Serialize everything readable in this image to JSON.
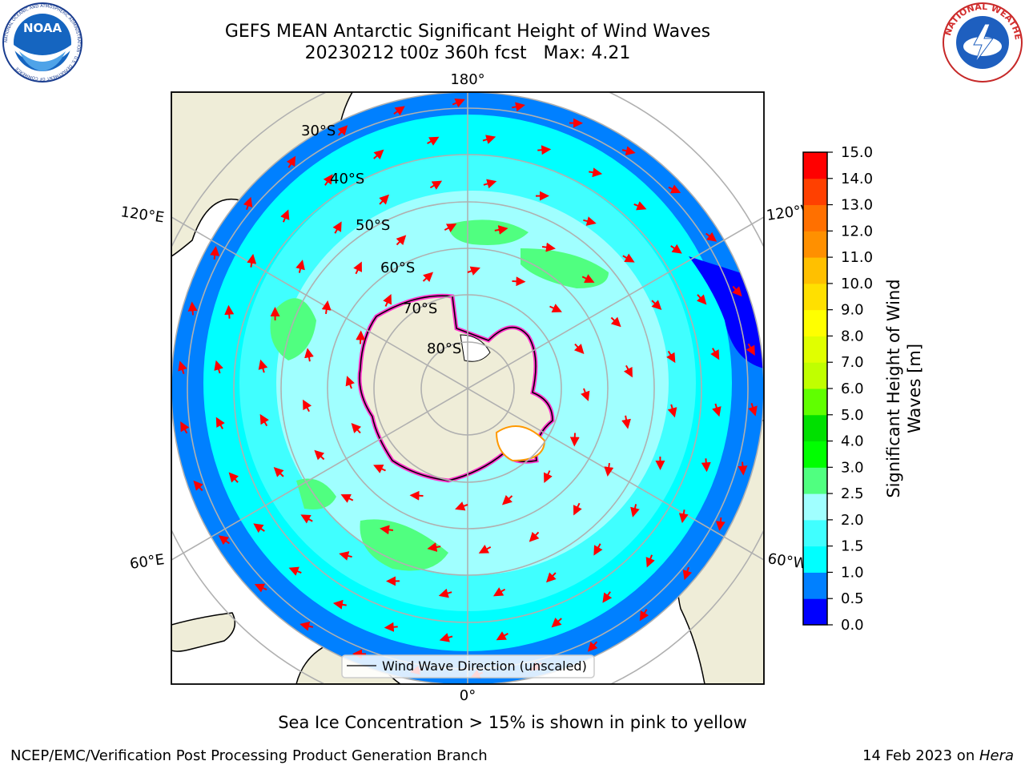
{
  "title": {
    "line1": "GEFS MEAN Antarctic Significant Height of Wind Waves",
    "line2": "20230212 t00z 360h fcst   Max: 4.21"
  },
  "logos": {
    "left_text": "NOAA",
    "left_ring_text": "NATIONAL OCEANIC AND ATMOSPHERIC ADMINISTRATION · U.S. DEPARTMENT OF COMMERCE",
    "right_ring_text": "NATIONAL WEATHER SERVICE"
  },
  "map": {
    "longitude_labels": {
      "top": "180°",
      "bottom": "0°",
      "upper_left": "120°E",
      "upper_right": "120°W",
      "lower_left": "60°E",
      "lower_right": "60°W"
    },
    "latitude_labels": [
      "30°S",
      "40°S",
      "50°S",
      "60°S",
      "70°S",
      "80°S"
    ],
    "legend_label": "Wind Wave Direction (unscaled)"
  },
  "colorbar": {
    "label": "Significant Height of Wind Waves [m]",
    "label_line1": "Significant Height of Wind",
    "label_line2": "Waves [m]",
    "ticks": [
      "0.0",
      "0.5",
      "1.0",
      "1.5",
      "2.0",
      "2.5",
      "3.0",
      "4.0",
      "5.0",
      "6.0",
      "7.0",
      "8.0",
      "9.0",
      "10.0",
      "11.0",
      "12.0",
      "13.0",
      "14.0",
      "15.0"
    ],
    "colors": [
      "#0000ff",
      "#0080ff",
      "#00ffff",
      "#40ffff",
      "#a0ffff",
      "#50ff80",
      "#00ff00",
      "#00e000",
      "#60ff00",
      "#c0ff00",
      "#e0ff00",
      "#ffff00",
      "#ffe000",
      "#ffc000",
      "#ff9000",
      "#ff7000",
      "#ff4000",
      "#ff0000"
    ]
  },
  "note": "Sea Ice Concentration > 15% is shown in pink to yellow",
  "footer": {
    "left": "NCEP/EMC/Verification Post Processing Product Generation Branch",
    "right_prefix": "14 Feb 2023 on ",
    "right_host": "Hera"
  }
}
